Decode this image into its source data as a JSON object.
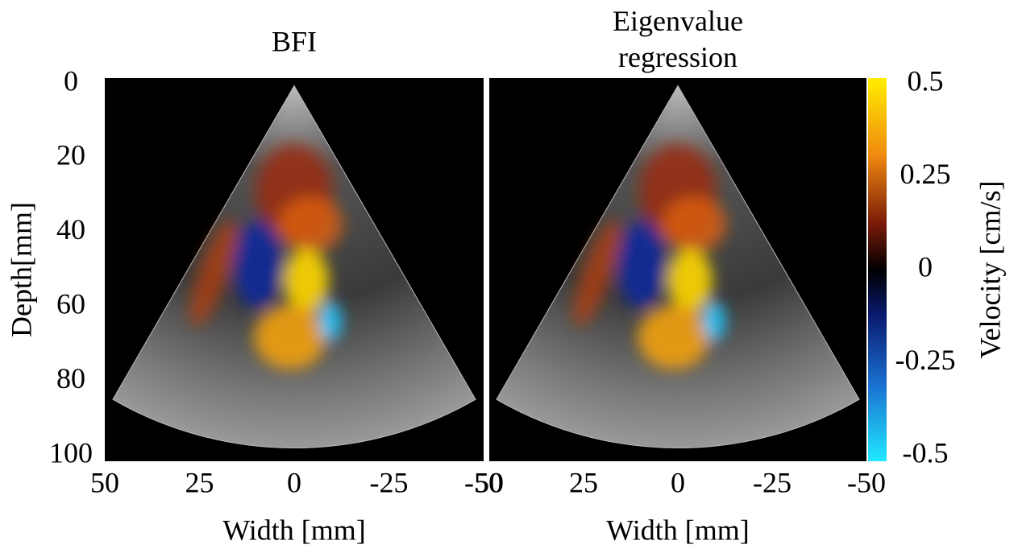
{
  "chart_data": [
    {
      "type": "image",
      "title": "BFI",
      "xlabel": "Width [mm]",
      "ylabel": "Depth[mm]",
      "xlim": [
        50,
        -50
      ],
      "xticks": [
        50,
        25,
        0,
        -25,
        -50
      ],
      "ylim": [
        0,
        100
      ],
      "yticks": [
        0,
        20,
        40,
        60,
        80,
        100
      ]
    },
    {
      "type": "image",
      "title": "Eigenvalue regression",
      "xlabel": "Width [mm]",
      "xlim": [
        50,
        -50
      ],
      "xticks": [
        50,
        25,
        0,
        -25,
        -50
      ],
      "ylim": [
        0,
        100
      ],
      "colorbar": {
        "label": "Velocity [cm/s]",
        "lim": [
          -0.5,
          0.5
        ],
        "ticks": [
          0.5,
          0.25,
          0,
          -0.25,
          -0.5
        ]
      }
    }
  ]
}
